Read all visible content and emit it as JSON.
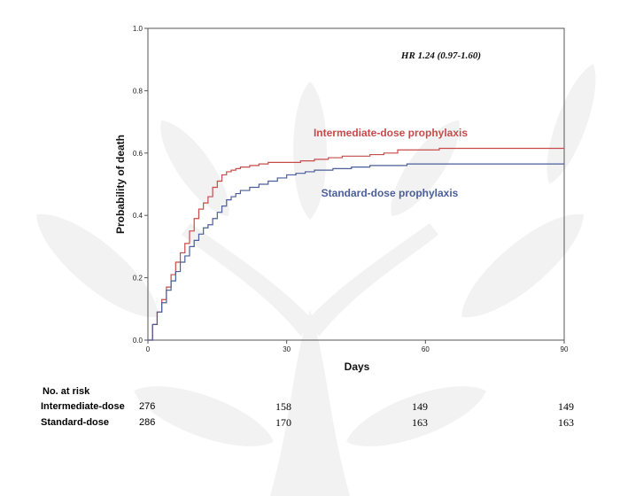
{
  "chart_data": {
    "type": "line",
    "title": "",
    "xlabel": "Days",
    "ylabel": "Probability of death",
    "xlim": [
      0,
      90
    ],
    "ylim": [
      0,
      1.0
    ],
    "x_ticks": [
      "0",
      "30",
      "60",
      "90"
    ],
    "y_ticks": [
      "0.0",
      "0.2",
      "0.4",
      "0.6",
      "0.8",
      "1.0"
    ],
    "grid": false,
    "annotation": "HR 1.24 (0.97-1.60)",
    "series": [
      {
        "name": "Intermediate-dose prophylaxis",
        "color": "#c84b4b",
        "x": [
          0,
          1,
          2,
          3,
          4,
          5,
          6,
          7,
          8,
          9,
          10,
          11,
          12,
          13,
          14,
          15,
          16,
          17,
          18,
          19,
          20,
          22,
          24,
          26,
          28,
          30,
          33,
          36,
          39,
          42,
          45,
          48,
          51,
          54,
          57,
          60,
          63,
          66,
          75,
          90
        ],
        "y": [
          0,
          0.05,
          0.09,
          0.13,
          0.17,
          0.21,
          0.25,
          0.28,
          0.31,
          0.35,
          0.39,
          0.42,
          0.44,
          0.46,
          0.49,
          0.51,
          0.53,
          0.54,
          0.545,
          0.55,
          0.555,
          0.56,
          0.565,
          0.57,
          0.57,
          0.57,
          0.575,
          0.58,
          0.585,
          0.59,
          0.59,
          0.595,
          0.6,
          0.61,
          0.61,
          0.61,
          0.615,
          0.615,
          0.615,
          0.615
        ]
      },
      {
        "name": "Standard-dose prophylaxis",
        "color": "#4a5e9a",
        "x": [
          0,
          1,
          2,
          3,
          4,
          5,
          6,
          7,
          8,
          9,
          10,
          11,
          12,
          13,
          14,
          15,
          16,
          17,
          18,
          19,
          20,
          22,
          24,
          26,
          28,
          30,
          32,
          34,
          36,
          40,
          44,
          48,
          52,
          56,
          60,
          64,
          70,
          80,
          90
        ],
        "y": [
          0,
          0.05,
          0.09,
          0.12,
          0.16,
          0.19,
          0.22,
          0.25,
          0.27,
          0.3,
          0.32,
          0.34,
          0.36,
          0.37,
          0.39,
          0.41,
          0.43,
          0.45,
          0.46,
          0.47,
          0.48,
          0.49,
          0.5,
          0.51,
          0.52,
          0.53,
          0.535,
          0.54,
          0.545,
          0.55,
          0.555,
          0.56,
          0.56,
          0.565,
          0.565,
          0.565,
          0.565,
          0.565,
          0.565
        ]
      }
    ]
  },
  "risk_table": {
    "title": "No. at risk",
    "rows": [
      {
        "label": "Intermediate-dose",
        "values": [
          "276",
          "158",
          "149",
          "149"
        ]
      },
      {
        "label": "Standard-dose",
        "values": [
          "286",
          "170",
          "163",
          "163"
        ]
      }
    ]
  }
}
